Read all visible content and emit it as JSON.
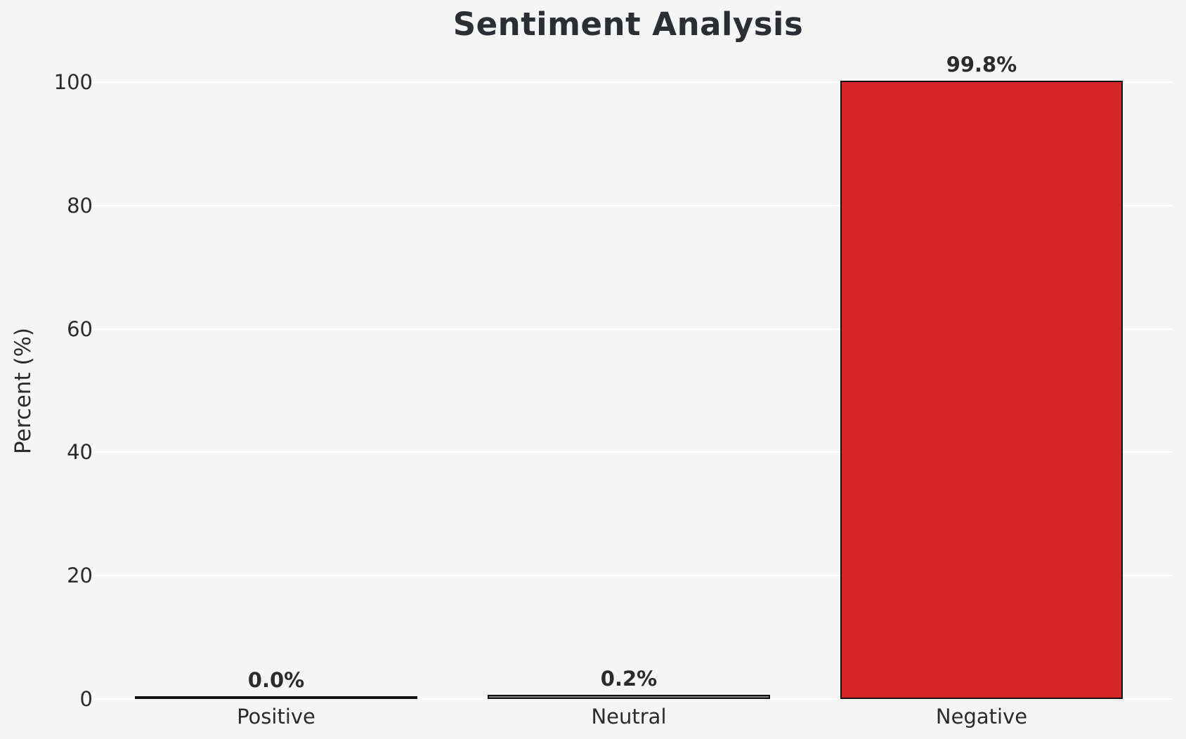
{
  "chart_data": {
    "type": "bar",
    "title": "Sentiment Analysis",
    "xlabel": "",
    "ylabel": "Percent (%)",
    "categories": [
      "Positive",
      "Neutral",
      "Negative"
    ],
    "values": [
      0.0,
      0.2,
      99.8
    ],
    "value_labels": [
      "0.0%",
      "0.2%",
      "99.8%"
    ],
    "bar_colors": [
      "#2ca02c",
      "#7f7f7f",
      "#d62728"
    ],
    "bar_edge_color": "#111111",
    "ylim": [
      0,
      100
    ],
    "yticks": [
      0,
      20,
      40,
      60,
      80,
      100
    ],
    "grid": true,
    "legend": "none",
    "colors": {
      "background": "#f5f5f6",
      "gridline": "#ffffff",
      "text": "#2b2b2b",
      "title": "#2b2e33"
    }
  }
}
